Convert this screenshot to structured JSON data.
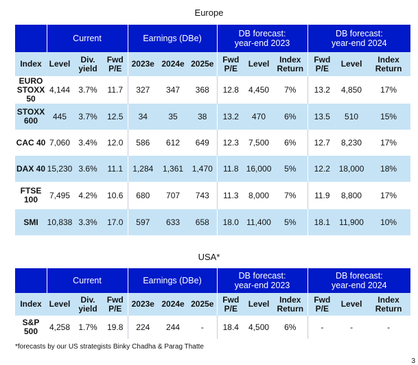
{
  "europe": {
    "title": "Europe",
    "groups": [
      "",
      "Current",
      "Earnings (DBe)",
      "DB forecast:\nyear-end 2023",
      "DB forecast:\nyear-end 2024"
    ],
    "headers": [
      "Index",
      "Level",
      "Div. yield",
      "Fwd P/E",
      "2023e",
      "2024e",
      "2025e",
      "Fwd P/E",
      "Level",
      "Index Return",
      "Fwd P/E",
      "Level",
      "Index Return"
    ],
    "rows": [
      [
        "EURO STOXX 50",
        "4,144",
        "3.7%",
        "11.7",
        "327",
        "347",
        "368",
        "12.8",
        "4,450",
        "7%",
        "13.2",
        "4,850",
        "17%"
      ],
      [
        "STOXX 600",
        "445",
        "3.7%",
        "12.5",
        "34",
        "35",
        "38",
        "13.2",
        "470",
        "6%",
        "13.5",
        "510",
        "15%"
      ],
      [
        "CAC 40",
        "7,060",
        "3.4%",
        "12.0",
        "586",
        "612",
        "649",
        "12.3",
        "7,500",
        "6%",
        "12.7",
        "8,230",
        "17%"
      ],
      [
        "DAX 40",
        "15,230",
        "3.6%",
        "11.1",
        "1,284",
        "1,361",
        "1,470",
        "11.8",
        "16,000",
        "5%",
        "12.2",
        "18,000",
        "18%"
      ],
      [
        "FTSE 100",
        "7,495",
        "4.2%",
        "10.6",
        "680",
        "707",
        "743",
        "11.3",
        "8,000",
        "7%",
        "11.9",
        "8,800",
        "17%"
      ],
      [
        "SMI",
        "10,838",
        "3.3%",
        "17.0",
        "597",
        "633",
        "658",
        "18.0",
        "11,400",
        "5%",
        "18.1",
        "11,900",
        "10%"
      ]
    ]
  },
  "usa": {
    "title": "USA*",
    "groups": [
      "",
      "Current",
      "Earnings (DBe)",
      "DB forecast:\nyear-end 2023",
      "DB forecast:\nyear-end 2024"
    ],
    "headers": [
      "Index",
      "Level",
      "Div. yield",
      "Fwd P/E",
      "2023e",
      "2024e",
      "2025e",
      "Fwd P/E",
      "Level",
      "Index Return",
      "Fwd P/E",
      "Level",
      "Index Return"
    ],
    "rows": [
      [
        "S&P 500",
        "4,258",
        "1.7%",
        "19.8",
        "224",
        "244",
        "-",
        "18.4",
        "4,500",
        "6%",
        "-",
        "-",
        "-"
      ]
    ]
  },
  "footnote": "*forecasts by our US strategists Binky Chadha & Parag Thatte",
  "page_marker": "3",
  "colors": {
    "header_blue": "#0019c9",
    "light_blue": "#c6e3f6"
  }
}
